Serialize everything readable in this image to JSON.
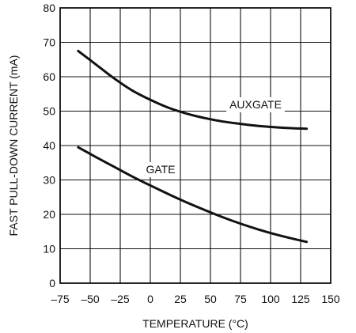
{
  "chart_data": {
    "type": "line",
    "title": "",
    "xlabel": "TEMPERATURE (°C)",
    "ylabel": "FAST PULL-DOWN CURRENT (mA)",
    "xlim": [
      -75,
      150
    ],
    "ylim": [
      0,
      80
    ],
    "x_ticks": [
      -75,
      -50,
      -25,
      0,
      25,
      50,
      75,
      100,
      125,
      150
    ],
    "y_ticks": [
      0,
      10,
      20,
      30,
      40,
      50,
      60,
      70,
      80
    ],
    "x_tick_labels": [
      "–75",
      "–50",
      "–25",
      "0",
      "25",
      "50",
      "75",
      "100",
      "125",
      "150"
    ],
    "y_tick_labels": [
      "0",
      "10",
      "20",
      "30",
      "40",
      "50",
      "60",
      "70",
      "80"
    ],
    "grid": true,
    "series": [
      {
        "name": "AUXGATE",
        "x": [
          -60,
          -45,
          -30,
          -15,
          0,
          15,
          30,
          45,
          60,
          75,
          90,
          105,
          120,
          130
        ],
        "y": [
          67.5,
          63.5,
          59.5,
          56.0,
          53.3,
          51.0,
          49.3,
          48.0,
          47.0,
          46.3,
          45.7,
          45.3,
          45.0,
          44.9
        ]
      },
      {
        "name": "GATE",
        "x": [
          -60,
          -45,
          -30,
          -15,
          0,
          15,
          30,
          45,
          60,
          75,
          90,
          105,
          120,
          130
        ],
        "y": [
          39.5,
          36.6,
          33.8,
          31.0,
          28.4,
          25.9,
          23.5,
          21.3,
          19.2,
          17.3,
          15.6,
          14.1,
          12.8,
          12.0
        ]
      }
    ]
  }
}
